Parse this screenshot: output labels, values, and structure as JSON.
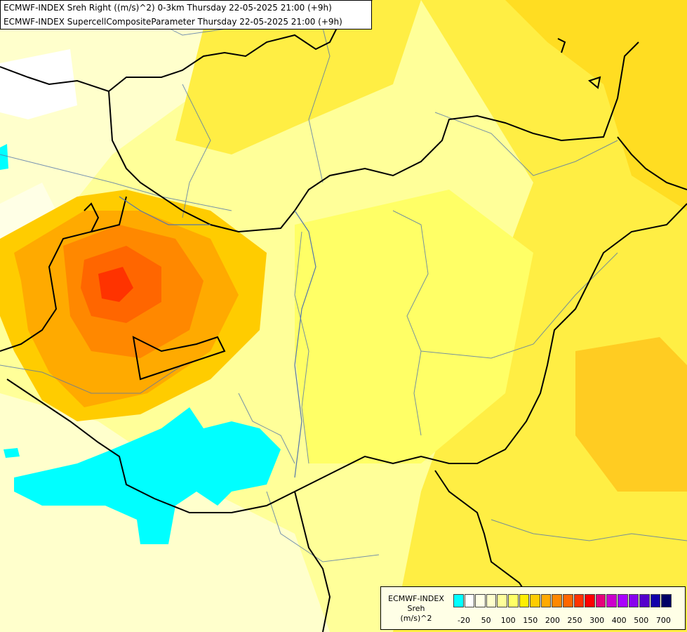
{
  "title": {
    "line1": "ECMWF-INDEX Sreh Right ((m/s)^2) 0-3km Thursday 22-05-2025 21:00 (+9h)",
    "line2": "ECMWF-INDEX SupercellCompositeParameter Thursday 22-05-2025 21:00 (+9h)"
  },
  "legend": {
    "line1": "ECMWF-INDEX",
    "line2": "Sreh",
    "line3": "(m/s)^2",
    "colors": [
      "#00ffff",
      "#ffffff",
      "#ffffe6",
      "#ffffcc",
      "#ffff99",
      "#ffff66",
      "#ffee00",
      "#ffcc00",
      "#ffaa00",
      "#ff8800",
      "#ff6600",
      "#ff3300",
      "#ff0000",
      "#e6007a",
      "#cc00cc",
      "#aa00ff",
      "#8800ee",
      "#5500cc",
      "#1100aa",
      "#000066"
    ],
    "ticks": [
      "-20",
      "50",
      "100",
      "150",
      "200",
      "250",
      "300",
      "400",
      "500",
      "700"
    ]
  }
}
